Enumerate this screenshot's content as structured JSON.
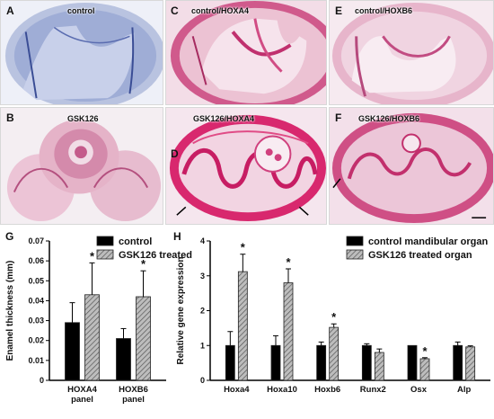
{
  "panels": [
    {
      "letter": "A",
      "title": "control"
    },
    {
      "letter": "B",
      "title": "GSK126"
    },
    {
      "letter": "C",
      "title": "control/HOXA4"
    },
    {
      "letter": "D",
      "title": "GSK126/HOXA4"
    },
    {
      "letter": "E",
      "title": "control/HOXB6"
    },
    {
      "letter": "F",
      "title": "GSK126/HOXB6"
    },
    {
      "letter": "G",
      "title": ""
    },
    {
      "letter": "H",
      "title": ""
    }
  ],
  "colors": {
    "control": "#000000",
    "treated_hatch": "#9a9a9a",
    "stain_blue": "#7f95c6",
    "stain_pink": "#d94d86"
  },
  "chart_data": [
    {
      "type": "bar",
      "title": "",
      "categories": [
        "HOXA4 panel",
        "HOXB6 panel"
      ],
      "category_lines": [
        [
          "HOXA4",
          "panel"
        ],
        [
          "HOXB6",
          "panel"
        ]
      ],
      "ylabel": "Enamel thickness (mm)",
      "ylim": [
        0,
        0.07
      ],
      "yticks": [
        "0",
        "0.01",
        "0.02",
        "0.03",
        "0.04",
        "0.05",
        "0.06",
        "0.07"
      ],
      "legend": [
        "control",
        "GSK126 treated"
      ],
      "series": [
        {
          "name": "control",
          "values": [
            0.029,
            0.021
          ],
          "errors": [
            0.01,
            0.005
          ]
        },
        {
          "name": "GSK126 treated",
          "values": [
            0.043,
            0.042
          ],
          "errors": [
            0.016,
            0.013
          ]
        }
      ],
      "significance": [
        "*",
        "*"
      ]
    },
    {
      "type": "bar",
      "title": "",
      "categories": [
        "Hoxa4",
        "Hoxa10",
        "Hoxb6",
        "Runx2",
        "Osx",
        "Alp"
      ],
      "ylabel": "Relative gene expression",
      "ylim": [
        0,
        4
      ],
      "yticks": [
        "0",
        "1",
        "2",
        "3",
        "4"
      ],
      "legend": [
        "control mandibular organ",
        "GSK126 treated organ"
      ],
      "series": [
        {
          "name": "control mandibular organ",
          "values": [
            1.0,
            1.0,
            1.0,
            1.0,
            1.0,
            1.0
          ],
          "errors": [
            0.4,
            0.28,
            0.1,
            0.05,
            0.0,
            0.1
          ]
        },
        {
          "name": "GSK126 treated organ",
          "values": [
            3.12,
            2.8,
            1.52,
            0.8,
            0.62,
            0.96
          ],
          "errors": [
            0.5,
            0.4,
            0.1,
            0.1,
            0.03,
            0.03
          ]
        }
      ],
      "significance": [
        "*",
        "*",
        "*",
        "",
        "*",
        ""
      ]
    }
  ]
}
